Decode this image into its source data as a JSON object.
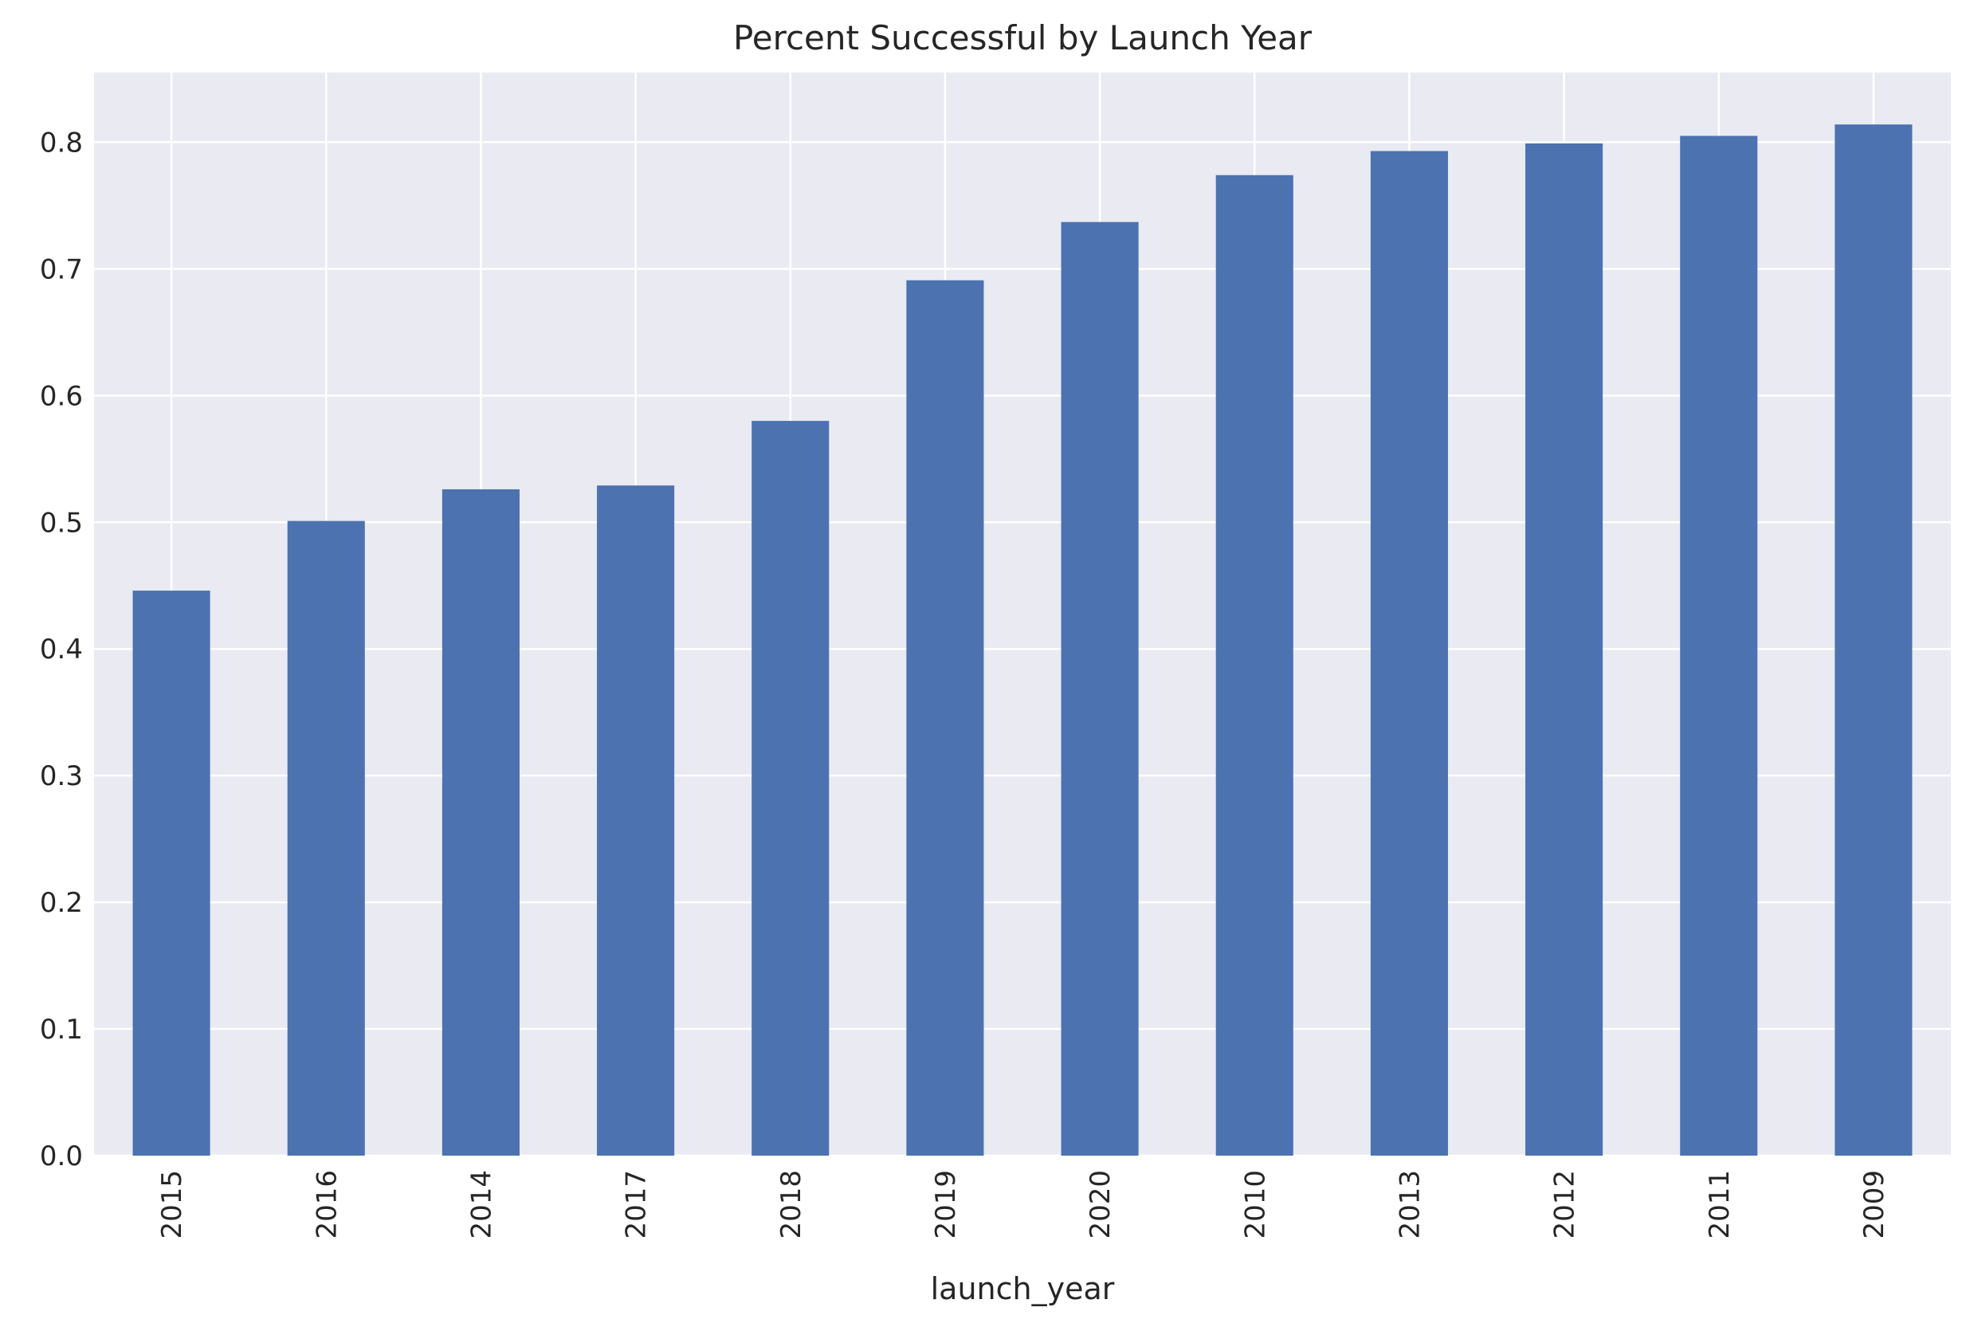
{
  "chart_data": {
    "type": "bar",
    "title": "Percent Successful by Launch Year",
    "xlabel": "launch_year",
    "ylabel": "",
    "categories": [
      "2015",
      "2016",
      "2014",
      "2017",
      "2018",
      "2019",
      "2020",
      "2010",
      "2013",
      "2012",
      "2011",
      "2009"
    ],
    "values": [
      0.446,
      0.501,
      0.526,
      0.529,
      0.58,
      0.691,
      0.737,
      0.774,
      0.793,
      0.799,
      0.805,
      0.814
    ],
    "ylim": [
      0,
      0.855
    ],
    "yticks": [
      "0.0",
      "0.1",
      "0.2",
      "0.3",
      "0.4",
      "0.5",
      "0.6",
      "0.7",
      "0.8"
    ],
    "grid": true,
    "legend": "none",
    "colors": {
      "bar": "#4c72b0",
      "plot_background": "#eaeaf2",
      "grid": "#ffffff",
      "text": "#262626"
    }
  }
}
